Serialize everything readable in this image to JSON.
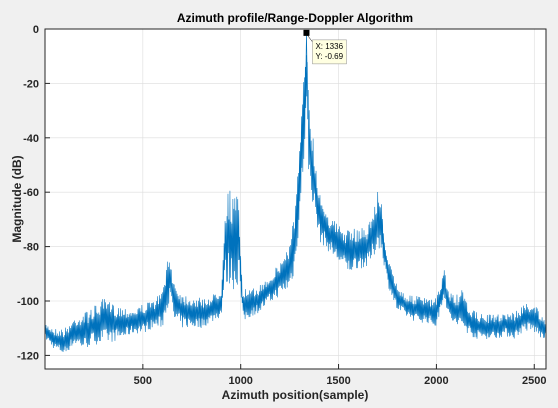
{
  "chart_data": {
    "type": "line",
    "title": "Azimuth profile/Range-Doppler Algorithm",
    "xlabel": "Azimuth position(sample)",
    "ylabel": "Magnitude (dB)",
    "xlim": [
      0,
      2560
    ],
    "ylim": [
      -125,
      0
    ],
    "xticks": [
      500,
      1000,
      1500,
      2000,
      2500
    ],
    "yticks": [
      0,
      -20,
      -40,
      -60,
      -80,
      -100,
      -120
    ],
    "grid": true,
    "colors": {
      "line": "#0072bd",
      "background": "#ffffff",
      "grid": "#dcdcdc",
      "datatip_bg": "#ffffe1"
    },
    "series": [
      {
        "envelope": [
          [
            0,
            -108,
            -114
          ],
          [
            50,
            -110,
            -118
          ],
          [
            100,
            -110,
            -120
          ],
          [
            150,
            -106,
            -116
          ],
          [
            200,
            -104,
            -118
          ],
          [
            250,
            -102,
            -116
          ],
          [
            300,
            -99,
            -116
          ],
          [
            350,
            -101,
            -115
          ],
          [
            400,
            -102,
            -114
          ],
          [
            450,
            -103,
            -112
          ],
          [
            500,
            -101,
            -112
          ],
          [
            550,
            -100,
            -110
          ],
          [
            600,
            -96,
            -110
          ],
          [
            620,
            -86,
            -104
          ],
          [
            640,
            -84,
            -100
          ],
          [
            660,
            -92,
            -108
          ],
          [
            700,
            -97,
            -110
          ],
          [
            750,
            -98,
            -110
          ],
          [
            800,
            -99,
            -110
          ],
          [
            850,
            -98,
            -108
          ],
          [
            900,
            -95,
            -106
          ],
          [
            920,
            -62,
            -96
          ],
          [
            940,
            -58,
            -94
          ],
          [
            960,
            -60,
            -96
          ],
          [
            980,
            -61,
            -96
          ],
          [
            990,
            -62,
            -90
          ],
          [
            1010,
            -95,
            -108
          ],
          [
            1050,
            -96,
            -106
          ],
          [
            1100,
            -94,
            -104
          ],
          [
            1150,
            -90,
            -101
          ],
          [
            1200,
            -86,
            -98
          ],
          [
            1250,
            -78,
            -96
          ],
          [
            1275,
            -66,
            -90
          ],
          [
            1300,
            -44,
            -72
          ],
          [
            1320,
            -18,
            -54
          ],
          [
            1336,
            -0.69,
            -30
          ],
          [
            1350,
            -22,
            -58
          ],
          [
            1380,
            -48,
            -68
          ],
          [
            1400,
            -58,
            -78
          ],
          [
            1450,
            -68,
            -82
          ],
          [
            1500,
            -72,
            -86
          ],
          [
            1550,
            -74,
            -90
          ],
          [
            1600,
            -73,
            -88
          ],
          [
            1650,
            -72,
            -88
          ],
          [
            1680,
            -66,
            -84
          ],
          [
            1700,
            -59,
            -80
          ],
          [
            1720,
            -64,
            -82
          ],
          [
            1750,
            -84,
            -94
          ],
          [
            1800,
            -94,
            -104
          ],
          [
            1850,
            -98,
            -106
          ],
          [
            1900,
            -98,
            -108
          ],
          [
            1950,
            -99,
            -108
          ],
          [
            2000,
            -99,
            -110
          ],
          [
            2040,
            -88,
            -98
          ],
          [
            2060,
            -96,
            -106
          ],
          [
            2100,
            -98,
            -110
          ],
          [
            2130,
            -96,
            -110
          ],
          [
            2160,
            -101,
            -112
          ],
          [
            2200,
            -104,
            -114
          ],
          [
            2250,
            -105,
            -114
          ],
          [
            2300,
            -105,
            -114
          ],
          [
            2350,
            -104,
            -113
          ],
          [
            2400,
            -104,
            -114
          ],
          [
            2450,
            -101,
            -111
          ],
          [
            2500,
            -100,
            -112
          ],
          [
            2540,
            -106,
            -114
          ],
          [
            2560,
            -108,
            -114
          ]
        ]
      }
    ],
    "datatip": {
      "x": 1336,
      "y": -0.69,
      "x_text": "X: 1336",
      "y_text": "Y: -0.69"
    }
  }
}
